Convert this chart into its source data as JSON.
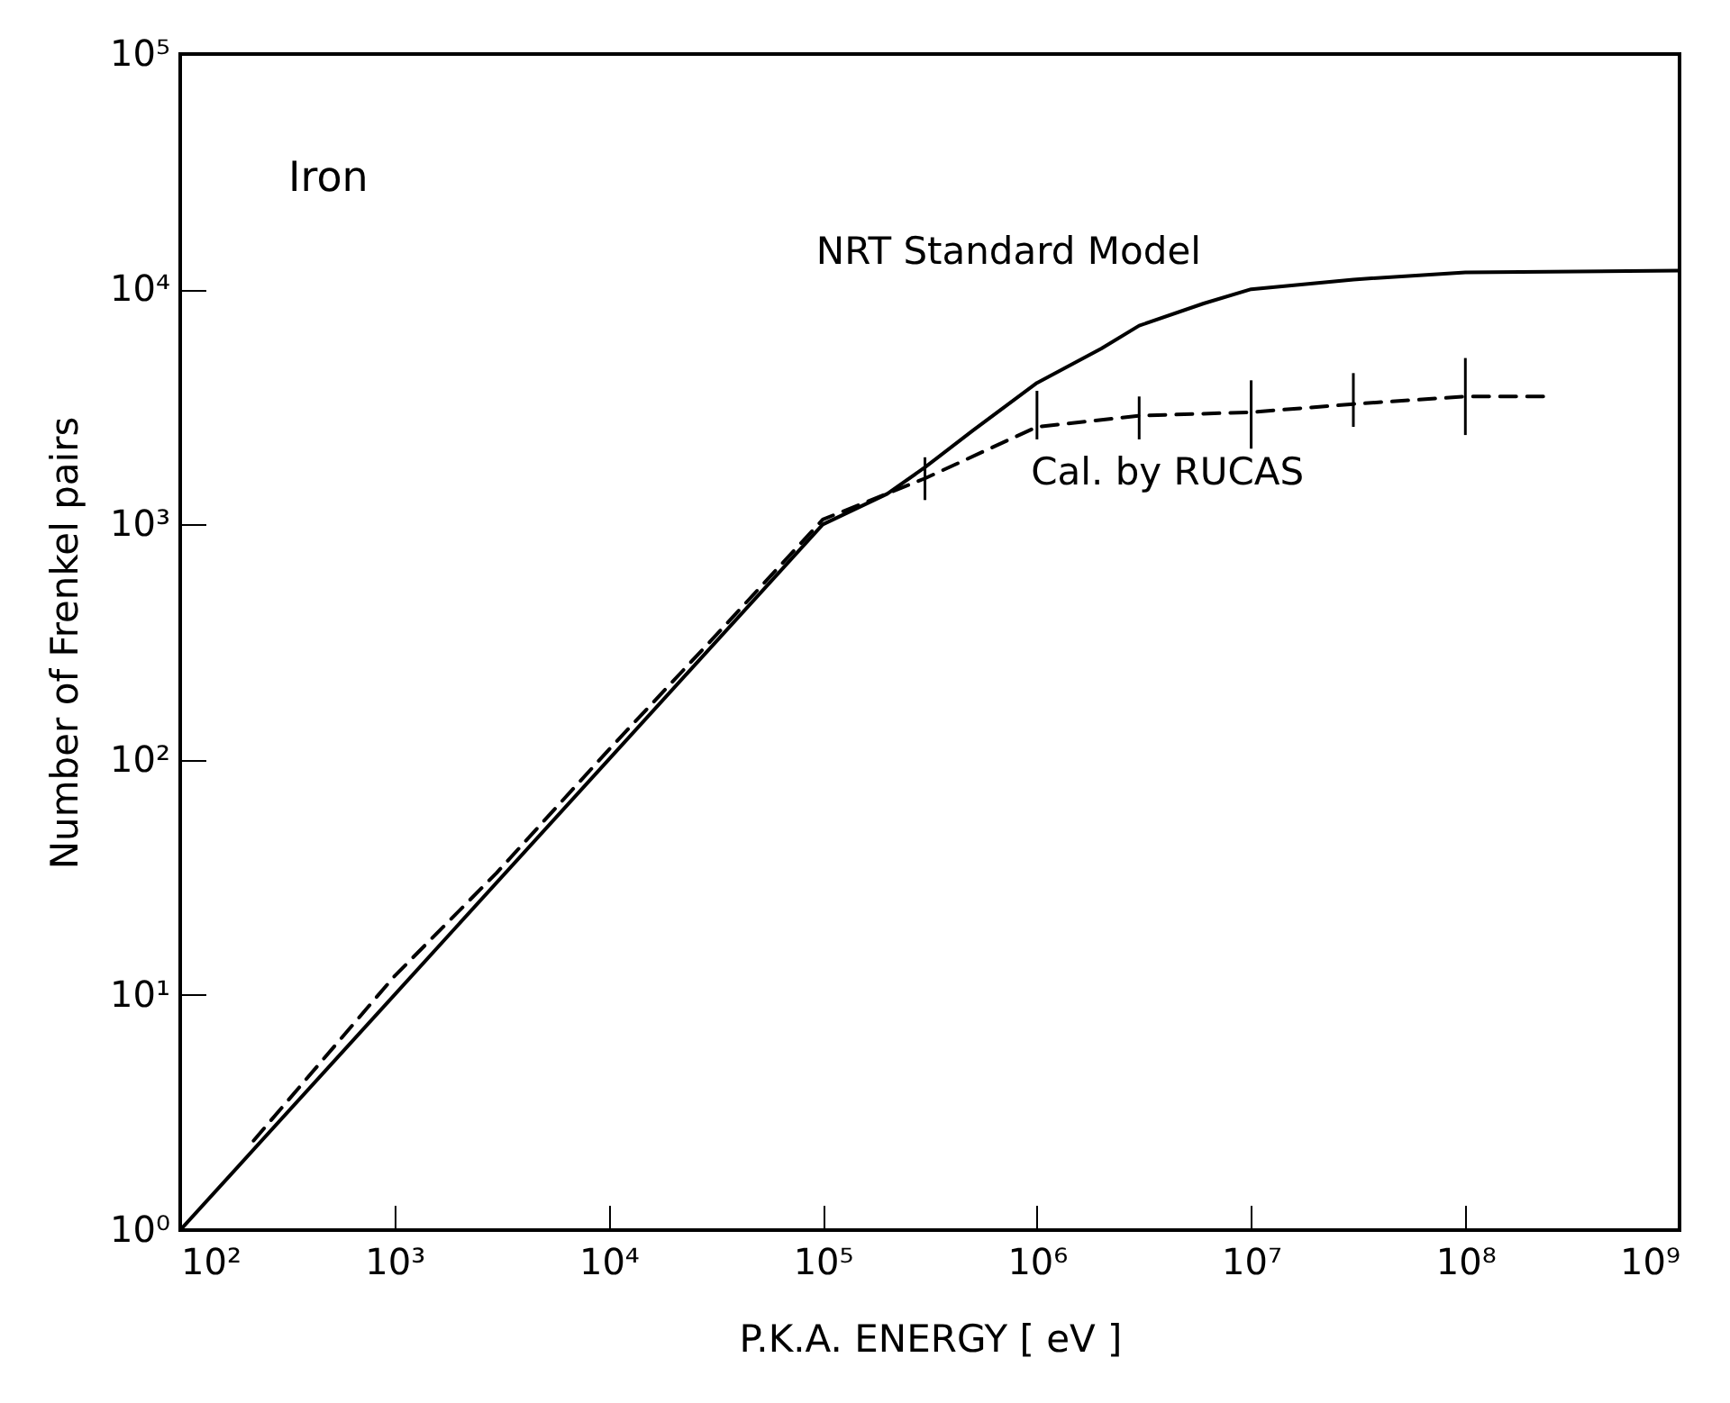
{
  "chart_data": {
    "type": "line",
    "xlabel": "P.K.A. ENERGY  [ eV ]",
    "ylabel": "Number of Frenkel pairs",
    "log": "xy",
    "grid": false,
    "legend": false,
    "marker": "none",
    "xlim": [
      100,
      1000000000
    ],
    "ylim": [
      1,
      100000
    ],
    "xticks": [
      {
        "value": 100,
        "label": "10²"
      },
      {
        "value": 1000,
        "label": "10³"
      },
      {
        "value": 10000,
        "label": "10⁴"
      },
      {
        "value": 100000,
        "label": "10⁵"
      },
      {
        "value": 1000000,
        "label": "10⁶"
      },
      {
        "value": 10000000,
        "label": "10⁷"
      },
      {
        "value": 100000000,
        "label": "10⁸"
      },
      {
        "value": 1000000000,
        "label": "10⁹"
      }
    ],
    "yticks": [
      {
        "value": 1,
        "label": "10⁰"
      },
      {
        "value": 10,
        "label": "10¹"
      },
      {
        "value": 100,
        "label": "10²"
      },
      {
        "value": 1000,
        "label": "10³"
      },
      {
        "value": 10000,
        "label": "10⁴"
      },
      {
        "value": 100000,
        "label": "10⁵"
      }
    ],
    "annotations": [
      "Iron"
    ],
    "series": [
      {
        "name": "NRT Standard Model",
        "color": "#000000",
        "line_style": "solid",
        "x": [
          100,
          1000,
          10000,
          100000,
          200000,
          300000,
          500000,
          1000000,
          2000000,
          3000000,
          6000000,
          10000000,
          30000000,
          100000000,
          1000000000
        ],
        "values": [
          1,
          10,
          100,
          1000,
          1350,
          1750,
          2500,
          4000,
          5600,
          7000,
          8700,
          10000,
          11000,
          11800,
          12000
        ]
      },
      {
        "name": "Cal. by RUCAS",
        "color": "#000000",
        "line_style": "dashed",
        "x": [
          220,
          1000,
          3000,
          10000,
          30000,
          100000,
          300000,
          1000000,
          3000000,
          10000000,
          30000000,
          100000000,
          240000000
        ],
        "values": [
          2.4,
          12,
          33,
          110,
          320,
          1050,
          1570,
          2600,
          2900,
          3000,
          3250,
          3500,
          3500
        ],
        "errors": [
          null,
          null,
          null,
          null,
          null,
          null,
          [
            1270,
            1930
          ],
          [
            2300,
            3700
          ],
          [
            2300,
            3500
          ],
          [
            2100,
            4100
          ],
          [
            2600,
            4400
          ],
          [
            2400,
            5100
          ],
          null
        ]
      }
    ]
  }
}
